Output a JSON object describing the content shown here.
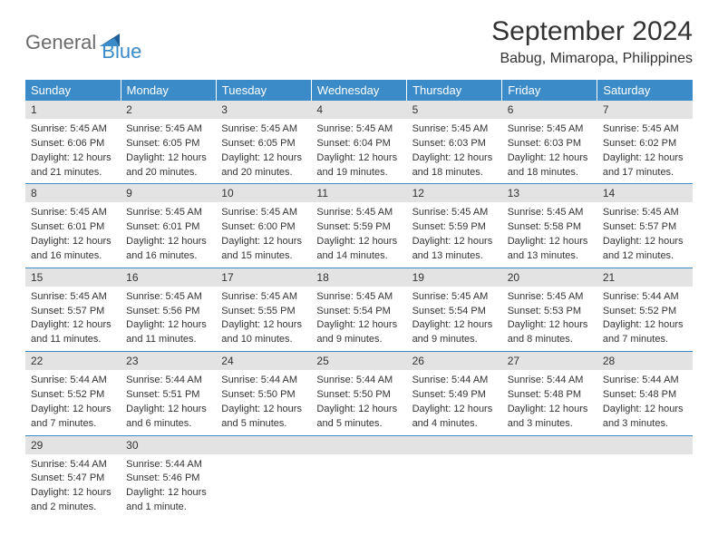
{
  "brand": {
    "word1": "General",
    "word2": "Blue"
  },
  "title": "September 2024",
  "location": "Babug, Mimaropa, Philippines",
  "colors": {
    "header_bg": "#3b8bc8",
    "header_text": "#ffffff",
    "daynum_bg": "#e3e3e3",
    "border": "#3b8bc8",
    "body_text": "#333333",
    "logo_gray": "#6b6b6b",
    "logo_blue": "#3b8bc8",
    "page_bg": "#ffffff"
  },
  "layout": {
    "columns": 7,
    "rows": 5,
    "col_width_pct": 14.28,
    "header_fontsize": 13,
    "daynum_fontsize": 12,
    "body_fontsize": 11,
    "title_fontsize": 30,
    "location_fontsize": 16
  },
  "weekdays": [
    "Sunday",
    "Monday",
    "Tuesday",
    "Wednesday",
    "Thursday",
    "Friday",
    "Saturday"
  ],
  "days": [
    {
      "n": "1",
      "sunrise": "Sunrise: 5:45 AM",
      "sunset": "Sunset: 6:06 PM",
      "dl1": "Daylight: 12 hours",
      "dl2": "and 21 minutes."
    },
    {
      "n": "2",
      "sunrise": "Sunrise: 5:45 AM",
      "sunset": "Sunset: 6:05 PM",
      "dl1": "Daylight: 12 hours",
      "dl2": "and 20 minutes."
    },
    {
      "n": "3",
      "sunrise": "Sunrise: 5:45 AM",
      "sunset": "Sunset: 6:05 PM",
      "dl1": "Daylight: 12 hours",
      "dl2": "and 20 minutes."
    },
    {
      "n": "4",
      "sunrise": "Sunrise: 5:45 AM",
      "sunset": "Sunset: 6:04 PM",
      "dl1": "Daylight: 12 hours",
      "dl2": "and 19 minutes."
    },
    {
      "n": "5",
      "sunrise": "Sunrise: 5:45 AM",
      "sunset": "Sunset: 6:03 PM",
      "dl1": "Daylight: 12 hours",
      "dl2": "and 18 minutes."
    },
    {
      "n": "6",
      "sunrise": "Sunrise: 5:45 AM",
      "sunset": "Sunset: 6:03 PM",
      "dl1": "Daylight: 12 hours",
      "dl2": "and 18 minutes."
    },
    {
      "n": "7",
      "sunrise": "Sunrise: 5:45 AM",
      "sunset": "Sunset: 6:02 PM",
      "dl1": "Daylight: 12 hours",
      "dl2": "and 17 minutes."
    },
    {
      "n": "8",
      "sunrise": "Sunrise: 5:45 AM",
      "sunset": "Sunset: 6:01 PM",
      "dl1": "Daylight: 12 hours",
      "dl2": "and 16 minutes."
    },
    {
      "n": "9",
      "sunrise": "Sunrise: 5:45 AM",
      "sunset": "Sunset: 6:01 PM",
      "dl1": "Daylight: 12 hours",
      "dl2": "and 16 minutes."
    },
    {
      "n": "10",
      "sunrise": "Sunrise: 5:45 AM",
      "sunset": "Sunset: 6:00 PM",
      "dl1": "Daylight: 12 hours",
      "dl2": "and 15 minutes."
    },
    {
      "n": "11",
      "sunrise": "Sunrise: 5:45 AM",
      "sunset": "Sunset: 5:59 PM",
      "dl1": "Daylight: 12 hours",
      "dl2": "and 14 minutes."
    },
    {
      "n": "12",
      "sunrise": "Sunrise: 5:45 AM",
      "sunset": "Sunset: 5:59 PM",
      "dl1": "Daylight: 12 hours",
      "dl2": "and 13 minutes."
    },
    {
      "n": "13",
      "sunrise": "Sunrise: 5:45 AM",
      "sunset": "Sunset: 5:58 PM",
      "dl1": "Daylight: 12 hours",
      "dl2": "and 13 minutes."
    },
    {
      "n": "14",
      "sunrise": "Sunrise: 5:45 AM",
      "sunset": "Sunset: 5:57 PM",
      "dl1": "Daylight: 12 hours",
      "dl2": "and 12 minutes."
    },
    {
      "n": "15",
      "sunrise": "Sunrise: 5:45 AM",
      "sunset": "Sunset: 5:57 PM",
      "dl1": "Daylight: 12 hours",
      "dl2": "and 11 minutes."
    },
    {
      "n": "16",
      "sunrise": "Sunrise: 5:45 AM",
      "sunset": "Sunset: 5:56 PM",
      "dl1": "Daylight: 12 hours",
      "dl2": "and 11 minutes."
    },
    {
      "n": "17",
      "sunrise": "Sunrise: 5:45 AM",
      "sunset": "Sunset: 5:55 PM",
      "dl1": "Daylight: 12 hours",
      "dl2": "and 10 minutes."
    },
    {
      "n": "18",
      "sunrise": "Sunrise: 5:45 AM",
      "sunset": "Sunset: 5:54 PM",
      "dl1": "Daylight: 12 hours",
      "dl2": "and 9 minutes."
    },
    {
      "n": "19",
      "sunrise": "Sunrise: 5:45 AM",
      "sunset": "Sunset: 5:54 PM",
      "dl1": "Daylight: 12 hours",
      "dl2": "and 9 minutes."
    },
    {
      "n": "20",
      "sunrise": "Sunrise: 5:45 AM",
      "sunset": "Sunset: 5:53 PM",
      "dl1": "Daylight: 12 hours",
      "dl2": "and 8 minutes."
    },
    {
      "n": "21",
      "sunrise": "Sunrise: 5:44 AM",
      "sunset": "Sunset: 5:52 PM",
      "dl1": "Daylight: 12 hours",
      "dl2": "and 7 minutes."
    },
    {
      "n": "22",
      "sunrise": "Sunrise: 5:44 AM",
      "sunset": "Sunset: 5:52 PM",
      "dl1": "Daylight: 12 hours",
      "dl2": "and 7 minutes."
    },
    {
      "n": "23",
      "sunrise": "Sunrise: 5:44 AM",
      "sunset": "Sunset: 5:51 PM",
      "dl1": "Daylight: 12 hours",
      "dl2": "and 6 minutes."
    },
    {
      "n": "24",
      "sunrise": "Sunrise: 5:44 AM",
      "sunset": "Sunset: 5:50 PM",
      "dl1": "Daylight: 12 hours",
      "dl2": "and 5 minutes."
    },
    {
      "n": "25",
      "sunrise": "Sunrise: 5:44 AM",
      "sunset": "Sunset: 5:50 PM",
      "dl1": "Daylight: 12 hours",
      "dl2": "and 5 minutes."
    },
    {
      "n": "26",
      "sunrise": "Sunrise: 5:44 AM",
      "sunset": "Sunset: 5:49 PM",
      "dl1": "Daylight: 12 hours",
      "dl2": "and 4 minutes."
    },
    {
      "n": "27",
      "sunrise": "Sunrise: 5:44 AM",
      "sunset": "Sunset: 5:48 PM",
      "dl1": "Daylight: 12 hours",
      "dl2": "and 3 minutes."
    },
    {
      "n": "28",
      "sunrise": "Sunrise: 5:44 AM",
      "sunset": "Sunset: 5:48 PM",
      "dl1": "Daylight: 12 hours",
      "dl2": "and 3 minutes."
    },
    {
      "n": "29",
      "sunrise": "Sunrise: 5:44 AM",
      "sunset": "Sunset: 5:47 PM",
      "dl1": "Daylight: 12 hours",
      "dl2": "and 2 minutes."
    },
    {
      "n": "30",
      "sunrise": "Sunrise: 5:44 AM",
      "sunset": "Sunset: 5:46 PM",
      "dl1": "Daylight: 12 hours",
      "dl2": "and 1 minute."
    }
  ]
}
